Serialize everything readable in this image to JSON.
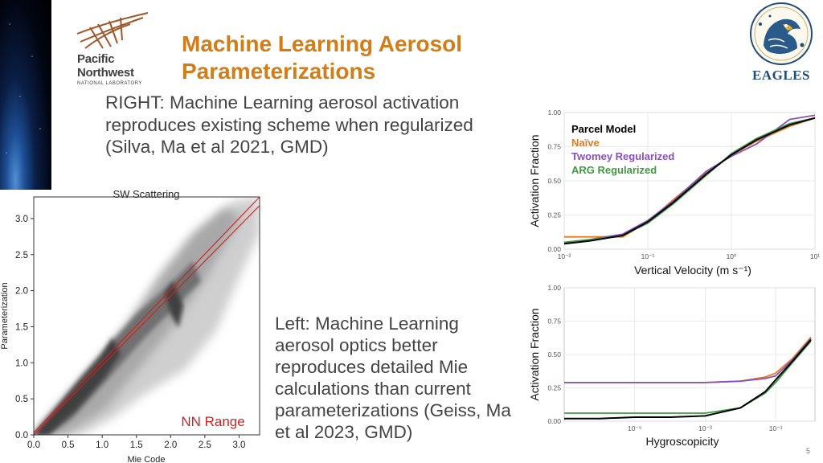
{
  "slide": {
    "title": "Machine Learning Aerosol Parameterizations",
    "right_text": "RIGHT: Machine Learning aerosol activation reproduces existing scheme when regularized (Silva, Ma et al 2021, GMD)",
    "left_text": "Left: Machine Learning aerosol optics better reproduces detailed Mie calculations than current parameterizations (Geiss, Ma et al 2023, GMD)",
    "page_number": "5"
  },
  "logos": {
    "pnnl_line1": "Pacific",
    "pnnl_line2": "Northwest",
    "pnnl_line3": "NATIONAL LABORATORY",
    "eagles_text": "EAGLES"
  },
  "colors": {
    "title": "#d37d16",
    "parcel": "#000000",
    "naive": "#e07b20",
    "twomey": "#8a4fc2",
    "arg": "#3f9a3f",
    "nn_range": "#cc2222"
  },
  "chart_data": [
    {
      "type": "heatmap",
      "title": "SW Scattering",
      "xlabel": "Mie Code",
      "ylabel": "Parameterization",
      "xlim": [
        0,
        3.3
      ],
      "ylim": [
        0,
        3.3
      ],
      "xticks": [
        "0.0",
        "0.5",
        "1.0",
        "1.5",
        "2.0",
        "2.5",
        "3.0"
      ],
      "yticks": [
        "0.0",
        "0.5",
        "1.0",
        "1.5",
        "2.0",
        "2.5",
        "3.0"
      ],
      "annotation": "NN Range",
      "nn_range": {
        "lower": [
          [
            0,
            0
          ],
          [
            3.3,
            3.18
          ]
        ],
        "upper": [
          [
            0,
            0.03
          ],
          [
            3.3,
            3.3
          ]
        ]
      }
    },
    {
      "type": "line",
      "xlabel": "Vertical Velocity (m s⁻¹)",
      "ylabel": "Activation Fraction",
      "xscale": "log",
      "xlim": [
        0.01,
        10
      ],
      "ylim": [
        0,
        1
      ],
      "xticks": [
        "10⁻²",
        "10⁻¹",
        "10⁰",
        "10¹"
      ],
      "yticks": [
        "0.00",
        "0.25",
        "0.50",
        "0.75",
        "1.00"
      ],
      "legend_position": "top-left",
      "series": [
        {
          "name": "Parcel Model",
          "x": [
            0.01,
            0.02,
            0.05,
            0.1,
            0.2,
            0.5,
            1,
            2,
            5,
            10
          ],
          "y": [
            0.04,
            0.06,
            0.1,
            0.2,
            0.34,
            0.55,
            0.69,
            0.8,
            0.91,
            0.96
          ]
        },
        {
          "name": "Naïve",
          "x": [
            0.01,
            0.02,
            0.05,
            0.1,
            0.2,
            0.5,
            1,
            2,
            5,
            10
          ],
          "y": [
            0.09,
            0.09,
            0.09,
            0.2,
            0.36,
            0.56,
            0.69,
            0.79,
            0.9,
            0.96
          ]
        },
        {
          "name": "Twomey Regularized",
          "x": [
            0.01,
            0.02,
            0.05,
            0.1,
            0.2,
            0.5,
            1,
            2,
            5,
            10
          ],
          "y": [
            0.05,
            0.07,
            0.11,
            0.21,
            0.35,
            0.57,
            0.68,
            0.77,
            0.95,
            0.98
          ]
        },
        {
          "name": "ARG Regularized",
          "x": [
            0.01,
            0.02,
            0.05,
            0.1,
            0.2,
            0.5,
            1,
            2,
            5,
            10
          ],
          "y": [
            0.05,
            0.07,
            0.1,
            0.19,
            0.33,
            0.54,
            0.7,
            0.81,
            0.92,
            0.96
          ]
        }
      ]
    },
    {
      "type": "line",
      "xlabel": "Hygroscopicity",
      "ylabel": "Activation Fraction",
      "xscale": "log",
      "xlim": [
        1e-07,
        1.3
      ],
      "ylim": [
        0,
        1
      ],
      "xticks": [
        "10⁻⁵",
        "10⁻³",
        "10⁻¹"
      ],
      "yticks": [
        "0.00",
        "0.25",
        "0.50",
        "0.75",
        "1.00"
      ],
      "series": [
        {
          "name": "Parcel Model",
          "x": [
            1e-07,
            1e-06,
            1e-05,
            0.0001,
            0.001,
            0.01,
            0.05,
            0.1,
            0.3,
            1
          ],
          "y": [
            0.02,
            0.02,
            0.03,
            0.03,
            0.04,
            0.1,
            0.22,
            0.31,
            0.45,
            0.61
          ]
        },
        {
          "name": "Naïve",
          "x": [
            1e-07,
            1e-06,
            1e-05,
            0.0001,
            0.001,
            0.01,
            0.05,
            0.1,
            0.3,
            1
          ],
          "y": [
            0.29,
            0.29,
            0.29,
            0.29,
            0.29,
            0.3,
            0.33,
            0.36,
            0.47,
            0.63
          ]
        },
        {
          "name": "Twomey Regularized",
          "x": [
            1e-07,
            1e-06,
            1e-05,
            0.0001,
            0.001,
            0.01,
            0.05,
            0.1,
            0.3,
            1
          ],
          "y": [
            0.29,
            0.29,
            0.29,
            0.29,
            0.29,
            0.3,
            0.32,
            0.34,
            0.46,
            0.62
          ]
        },
        {
          "name": "ARG Regularized",
          "x": [
            1e-07,
            1e-06,
            1e-05,
            0.0001,
            0.001,
            0.01,
            0.05,
            0.1,
            0.3,
            1
          ],
          "y": [
            0.06,
            0.06,
            0.06,
            0.06,
            0.06,
            0.1,
            0.21,
            0.29,
            0.44,
            0.6
          ]
        }
      ]
    }
  ]
}
